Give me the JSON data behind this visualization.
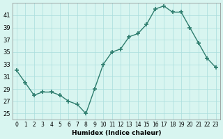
{
  "x": [
    0,
    1,
    2,
    3,
    4,
    5,
    6,
    7,
    8,
    9,
    10,
    11,
    12,
    13,
    14,
    15,
    16,
    17,
    18,
    19,
    20,
    21,
    22,
    23
  ],
  "y": [
    32,
    30,
    28,
    28.5,
    28.5,
    28,
    27,
    26.5,
    25,
    29,
    33,
    35,
    35.5,
    37.5,
    38,
    39.5,
    42,
    42.5,
    41.5,
    41.5,
    39,
    36.5,
    34,
    32.5
  ],
  "line_color": "#2e7d6e",
  "marker": "+",
  "bg_color": "#d8f5f0",
  "grid_color": "#aadddd",
  "xlabel": "Humidex (Indice chaleur)",
  "ylim": [
    24,
    43
  ],
  "xlim": [
    -0.5,
    23.5
  ],
  "yticks": [
    25,
    27,
    29,
    31,
    33,
    35,
    37,
    39,
    41
  ],
  "xticks": [
    0,
    1,
    2,
    3,
    4,
    5,
    6,
    7,
    8,
    9,
    10,
    11,
    12,
    13,
    14,
    15,
    16,
    17,
    18,
    19,
    20,
    21,
    22,
    23
  ]
}
